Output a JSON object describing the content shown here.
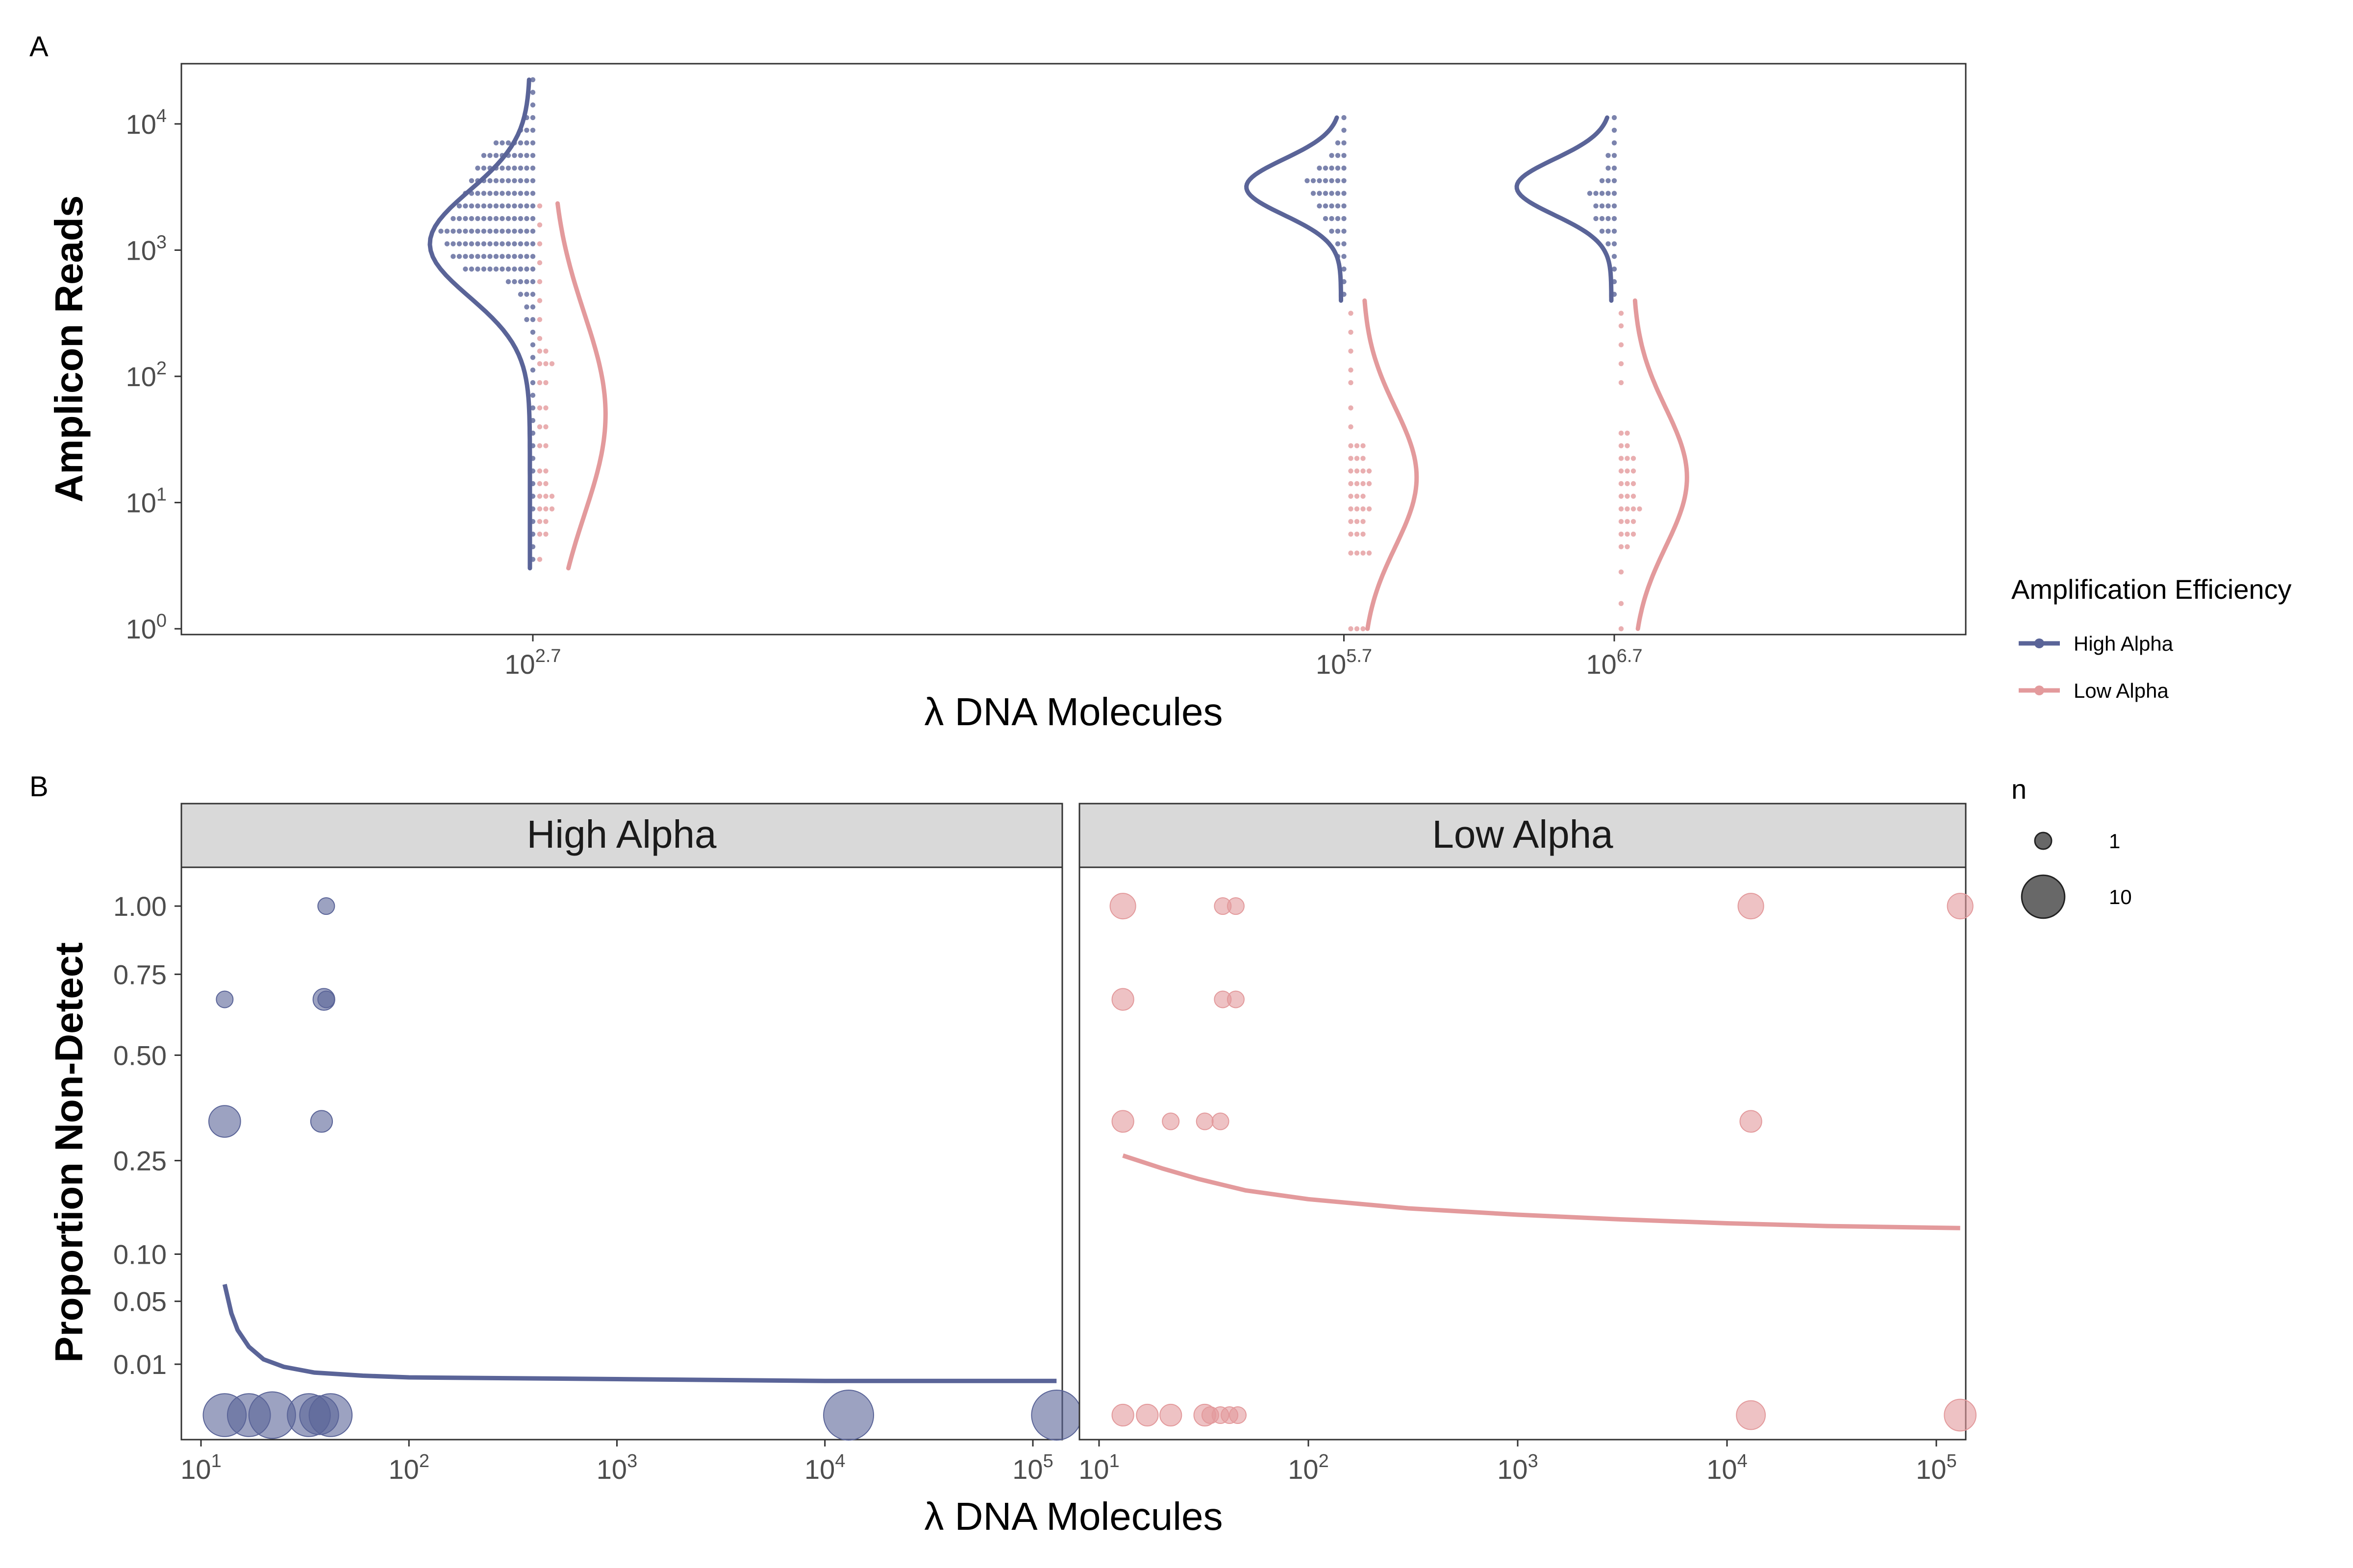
{
  "colors": {
    "high": "#5a6498",
    "low": "#e39a9c",
    "strip": "#d9d9d9"
  },
  "legend": {
    "title": "Amplification Efficiency",
    "items": [
      {
        "label": "High Alpha",
        "color": "#5a6498"
      },
      {
        "label": "Low Alpha",
        "color": "#e39a9c"
      }
    ],
    "size_title": "n",
    "size_items": [
      {
        "label": "1",
        "value": 1
      },
      {
        "label": "10",
        "value": 10
      }
    ]
  },
  "chart_data": [
    {
      "panel_tag": "A",
      "type": "scatter",
      "subtype": "dotplot with density curves",
      "title": "",
      "xlabel": "λ DNA Molecules",
      "ylabel": "Amplicon Reads",
      "y_scale": "log10",
      "ylim": [
        0.9,
        30000
      ],
      "y_ticks": [
        {
          "base": "10",
          "exp": "0"
        },
        {
          "base": "10",
          "exp": "1"
        },
        {
          "base": "10",
          "exp": "2"
        },
        {
          "base": "10",
          "exp": "3"
        },
        {
          "base": "10",
          "exp": "4"
        }
      ],
      "categories": [
        {
          "base": "10",
          "exp": "2.7"
        },
        {
          "base": "10",
          "exp": "5.7"
        },
        {
          "base": "10",
          "exp": "6.7"
        }
      ],
      "x_log_values": [
        2.7,
        5.7,
        6.7
      ],
      "xlim": [
        1.4,
        8.0
      ],
      "series": [
        {
          "name": "High Alpha",
          "groups": [
            {
              "x_log": 2.7,
              "bins_log10": [
                3.1,
                3.2,
                3.3,
                3.4,
                3.5,
                3.6,
                3.7,
                3.8,
                3.9,
                4.0,
                4.1,
                4.2,
                4.3
              ],
              "dot_rows": [
                [
                  2.85,
                  12
                ],
                [
                  2.95,
                  14
                ],
                [
                  3.05,
                  15
                ],
                [
                  3.15,
                  16
                ],
                [
                  3.25,
                  14
                ],
                [
                  3.35,
                  13
                ],
                [
                  3.45,
                  12
                ],
                [
                  3.55,
                  11
                ],
                [
                  3.65,
                  10
                ],
                [
                  3.75,
                  9
                ],
                [
                  3.85,
                  7
                ],
                [
                  3.95,
                  3
                ],
                [
                  4.05,
                  2
                ],
                [
                  4.15,
                  1
                ],
                [
                  4.25,
                  1
                ],
                [
                  4.35,
                  1
                ],
                [
                  2.75,
                  5
                ],
                [
                  2.65,
                  3
                ],
                [
                  2.55,
                  2
                ],
                [
                  2.45,
                  2
                ],
                [
                  2.35,
                  1
                ],
                [
                  2.25,
                  1
                ],
                [
                  2.15,
                  1
                ],
                [
                  2.05,
                  1
                ],
                [
                  1.95,
                  1
                ],
                [
                  1.85,
                  1
                ],
                [
                  1.75,
                  1
                ],
                [
                  1.65,
                  1
                ],
                [
                  1.55,
                  1
                ],
                [
                  1.45,
                  1
                ],
                [
                  1.35,
                  1
                ],
                [
                  1.25,
                  1
                ],
                [
                  1.15,
                  1
                ],
                [
                  1.05,
                  1
                ],
                [
                  0.95,
                  1
                ],
                [
                  0.85,
                  1
                ],
                [
                  0.75,
                  1
                ],
                [
                  0.65,
                  1
                ],
                [
                  0.55,
                  1
                ]
              ]
            },
            {
              "x_log": 5.7,
              "dot_rows": [
                [
                  2.65,
                  1
                ],
                [
                  2.75,
                  1
                ],
                [
                  2.85,
                  1
                ],
                [
                  2.95,
                  2
                ],
                [
                  3.05,
                  2
                ],
                [
                  3.15,
                  3
                ],
                [
                  3.25,
                  4
                ],
                [
                  3.35,
                  5
                ],
                [
                  3.45,
                  6
                ],
                [
                  3.55,
                  7
                ],
                [
                  3.65,
                  5
                ],
                [
                  3.75,
                  3
                ],
                [
                  3.85,
                  2
                ],
                [
                  3.95,
                  1
                ],
                [
                  4.05,
                  1
                ]
              ]
            },
            {
              "x_log": 6.7,
              "dot_rows": [
                [
                  2.65,
                  1
                ],
                [
                  2.75,
                  1
                ],
                [
                  2.85,
                  1
                ],
                [
                  2.95,
                  1
                ],
                [
                  3.05,
                  2
                ],
                [
                  3.15,
                  3
                ],
                [
                  3.25,
                  4
                ],
                [
                  3.35,
                  4
                ],
                [
                  3.45,
                  5
                ],
                [
                  3.55,
                  3
                ],
                [
                  3.65,
                  2
                ],
                [
                  3.75,
                  2
                ],
                [
                  3.85,
                  1
                ],
                [
                  3.95,
                  1
                ],
                [
                  4.05,
                  1
                ]
              ]
            }
          ],
          "density": [
            {
              "x_log": 2.7,
              "mean": 3.05,
              "sd": 0.42,
              "from": 0.48,
              "to": 4.35,
              "width": 0.37
            },
            {
              "x_log": 5.7,
              "mean": 3.5,
              "sd": 0.22,
              "from": 2.6,
              "to": 4.05,
              "width": 0.35
            },
            {
              "x_log": 6.7,
              "mean": 3.5,
              "sd": 0.22,
              "from": 2.6,
              "to": 4.05,
              "width": 0.35
            }
          ]
        },
        {
          "name": "Low Alpha",
          "groups": [
            {
              "x_log": 2.7,
              "dot_rows": [
                [
                  0.55,
                  1
                ],
                [
                  0.75,
                  2
                ],
                [
                  0.85,
                  2
                ],
                [
                  0.95,
                  3
                ],
                [
                  1.05,
                  3
                ],
                [
                  1.15,
                  2
                ],
                [
                  1.25,
                  2
                ],
                [
                  1.45,
                  2
                ],
                [
                  1.6,
                  2
                ],
                [
                  1.75,
                  2
                ],
                [
                  1.95,
                  2
                ],
                [
                  2.1,
                  3
                ],
                [
                  2.2,
                  2
                ],
                [
                  2.3,
                  1
                ],
                [
                  2.45,
                  1
                ],
                [
                  2.6,
                  1
                ],
                [
                  2.75,
                  1
                ],
                [
                  2.9,
                  1
                ],
                [
                  3.05,
                  1
                ],
                [
                  3.2,
                  1
                ],
                [
                  3.35,
                  1
                ]
              ]
            },
            {
              "x_log": 5.7,
              "dot_rows": [
                [
                  0.0,
                  3
                ],
                [
                  0.6,
                  4
                ],
                [
                  0.75,
                  3
                ],
                [
                  0.85,
                  3
                ],
                [
                  0.95,
                  4
                ],
                [
                  1.05,
                  3
                ],
                [
                  1.15,
                  4
                ],
                [
                  1.25,
                  4
                ],
                [
                  1.35,
                  3
                ],
                [
                  1.45,
                  3
                ],
                [
                  1.6,
                  1
                ],
                [
                  1.75,
                  1
                ],
                [
                  1.95,
                  1
                ],
                [
                  2.05,
                  1
                ],
                [
                  2.2,
                  1
                ],
                [
                  2.35,
                  1
                ],
                [
                  2.5,
                  1
                ]
              ]
            },
            {
              "x_log": 6.7,
              "dot_rows": [
                [
                  0.0,
                  1
                ],
                [
                  0.2,
                  1
                ],
                [
                  0.45,
                  1
                ],
                [
                  0.65,
                  2
                ],
                [
                  0.75,
                  3
                ],
                [
                  0.85,
                  3
                ],
                [
                  0.95,
                  4
                ],
                [
                  1.05,
                  3
                ],
                [
                  1.15,
                  3
                ],
                [
                  1.25,
                  3
                ],
                [
                  1.35,
                  3
                ],
                [
                  1.45,
                  2
                ],
                [
                  1.55,
                  2
                ],
                [
                  1.95,
                  1
                ],
                [
                  2.1,
                  1
                ],
                [
                  2.25,
                  1
                ],
                [
                  2.4,
                  1
                ],
                [
                  2.5,
                  1
                ]
              ]
            }
          ],
          "density": [
            {
              "x_log": 2.7,
              "mean": 1.7,
              "sd": 0.8,
              "from": 0.48,
              "to": 3.37,
              "width": 0.2
            },
            {
              "x_log": 5.7,
              "mean": 1.2,
              "sd": 0.55,
              "from": 0.0,
              "to": 2.6,
              "width": 0.2
            },
            {
              "x_log": 6.7,
              "mean": 1.2,
              "sd": 0.55,
              "from": 0.0,
              "to": 2.6,
              "width": 0.2
            }
          ]
        }
      ]
    },
    {
      "panel_tag": "B",
      "type": "scatter",
      "subtype": "bubble with fitted line, faceted",
      "title": "",
      "xlabel": "λ DNA Molecules",
      "ylabel": "Proportion Non-Detect",
      "x_scale": "log10",
      "xlim": [
        0.93,
        5.3
      ],
      "x_ticks": [
        {
          "base": "10",
          "exp": "1"
        },
        {
          "base": "10",
          "exp": "2"
        },
        {
          "base": "10",
          "exp": "3"
        },
        {
          "base": "10",
          "exp": "4"
        },
        {
          "base": "10",
          "exp": "5"
        }
      ],
      "y_ticks": [
        "0.01",
        "0.05",
        "0.10",
        "0.25",
        "0.50",
        "0.75",
        "1.00"
      ],
      "y_tick_values": [
        0.01,
        0.05,
        0.1,
        0.25,
        0.5,
        0.75,
        1.0
      ],
      "y_scale": "sqrt (approx.)",
      "ylim": [
        0.0,
        1.2
      ],
      "facets": [
        {
          "label": "High Alpha",
          "points": [
            {
              "x": 13,
              "y": 0.0,
              "n": 10
            },
            {
              "x": 17,
              "y": 0.0,
              "n": 10
            },
            {
              "x": 22,
              "y": 0.0,
              "n": 12
            },
            {
              "x": 33,
              "y": 0.0,
              "n": 10
            },
            {
              "x": 37,
              "y": 0.0,
              "n": 8
            },
            {
              "x": 42,
              "y": 0.0,
              "n": 10
            },
            {
              "x": 13000,
              "y": 0.0,
              "n": 14
            },
            {
              "x": 130000,
              "y": 0.0,
              "n": 14
            },
            {
              "x": 13,
              "y": 0.667,
              "n": 1
            },
            {
              "x": 39,
              "y": 0.667,
              "n": 2
            },
            {
              "x": 40,
              "y": 0.667,
              "n": 1
            },
            {
              "x": 13,
              "y": 0.333,
              "n": 5
            },
            {
              "x": 38,
              "y": 0.333,
              "n": 2
            },
            {
              "x": 40,
              "y": 1.0,
              "n": 1
            }
          ],
          "fit": {
            "x": [
              13,
              14,
              15,
              17,
              20,
              25,
              35,
              60,
              100,
              1000,
              10000,
              130000
            ],
            "y": [
              0.066,
              0.04,
              0.028,
              0.018,
              0.012,
              0.009,
              0.007,
              0.006,
              0.0055,
              0.005,
              0.0045,
              0.0045
            ]
          }
        },
        {
          "label": "Low Alpha",
          "points": [
            {
              "x": 13,
              "y": 0.0,
              "n": 2
            },
            {
              "x": 17,
              "y": 0.0,
              "n": 2
            },
            {
              "x": 22,
              "y": 0.0,
              "n": 2
            },
            {
              "x": 32,
              "y": 0.0,
              "n": 2
            },
            {
              "x": 34,
              "y": 0.0,
              "n": 1
            },
            {
              "x": 38,
              "y": 0.0,
              "n": 1
            },
            {
              "x": 42,
              "y": 0.0,
              "n": 1
            },
            {
              "x": 46,
              "y": 0.0,
              "n": 1
            },
            {
              "x": 13000,
              "y": 0.0,
              "n": 4
            },
            {
              "x": 130000,
              "y": 0.0,
              "n": 5
            },
            {
              "x": 13,
              "y": 0.333,
              "n": 2
            },
            {
              "x": 22,
              "y": 0.333,
              "n": 1
            },
            {
              "x": 32,
              "y": 0.333,
              "n": 1
            },
            {
              "x": 38,
              "y": 0.333,
              "n": 1
            },
            {
              "x": 13000,
              "y": 0.333,
              "n": 2
            },
            {
              "x": 13,
              "y": 0.667,
              "n": 2
            },
            {
              "x": 39,
              "y": 0.667,
              "n": 1
            },
            {
              "x": 45,
              "y": 0.667,
              "n": 1
            },
            {
              "x": 13,
              "y": 1.0,
              "n": 3
            },
            {
              "x": 39,
              "y": 1.0,
              "n": 1
            },
            {
              "x": 45,
              "y": 1.0,
              "n": 1
            },
            {
              "x": 13000,
              "y": 1.0,
              "n": 3
            },
            {
              "x": 130000,
              "y": 1.0,
              "n": 3
            }
          ],
          "fit": {
            "x": [
              13,
              20,
              30,
              50,
              100,
              300,
              1000,
              3000,
              10000,
              30000,
              130000
            ],
            "y": [
              0.26,
              0.235,
              0.215,
              0.195,
              0.18,
              0.165,
              0.155,
              0.148,
              0.142,
              0.138,
              0.135
            ]
          }
        }
      ]
    }
  ]
}
